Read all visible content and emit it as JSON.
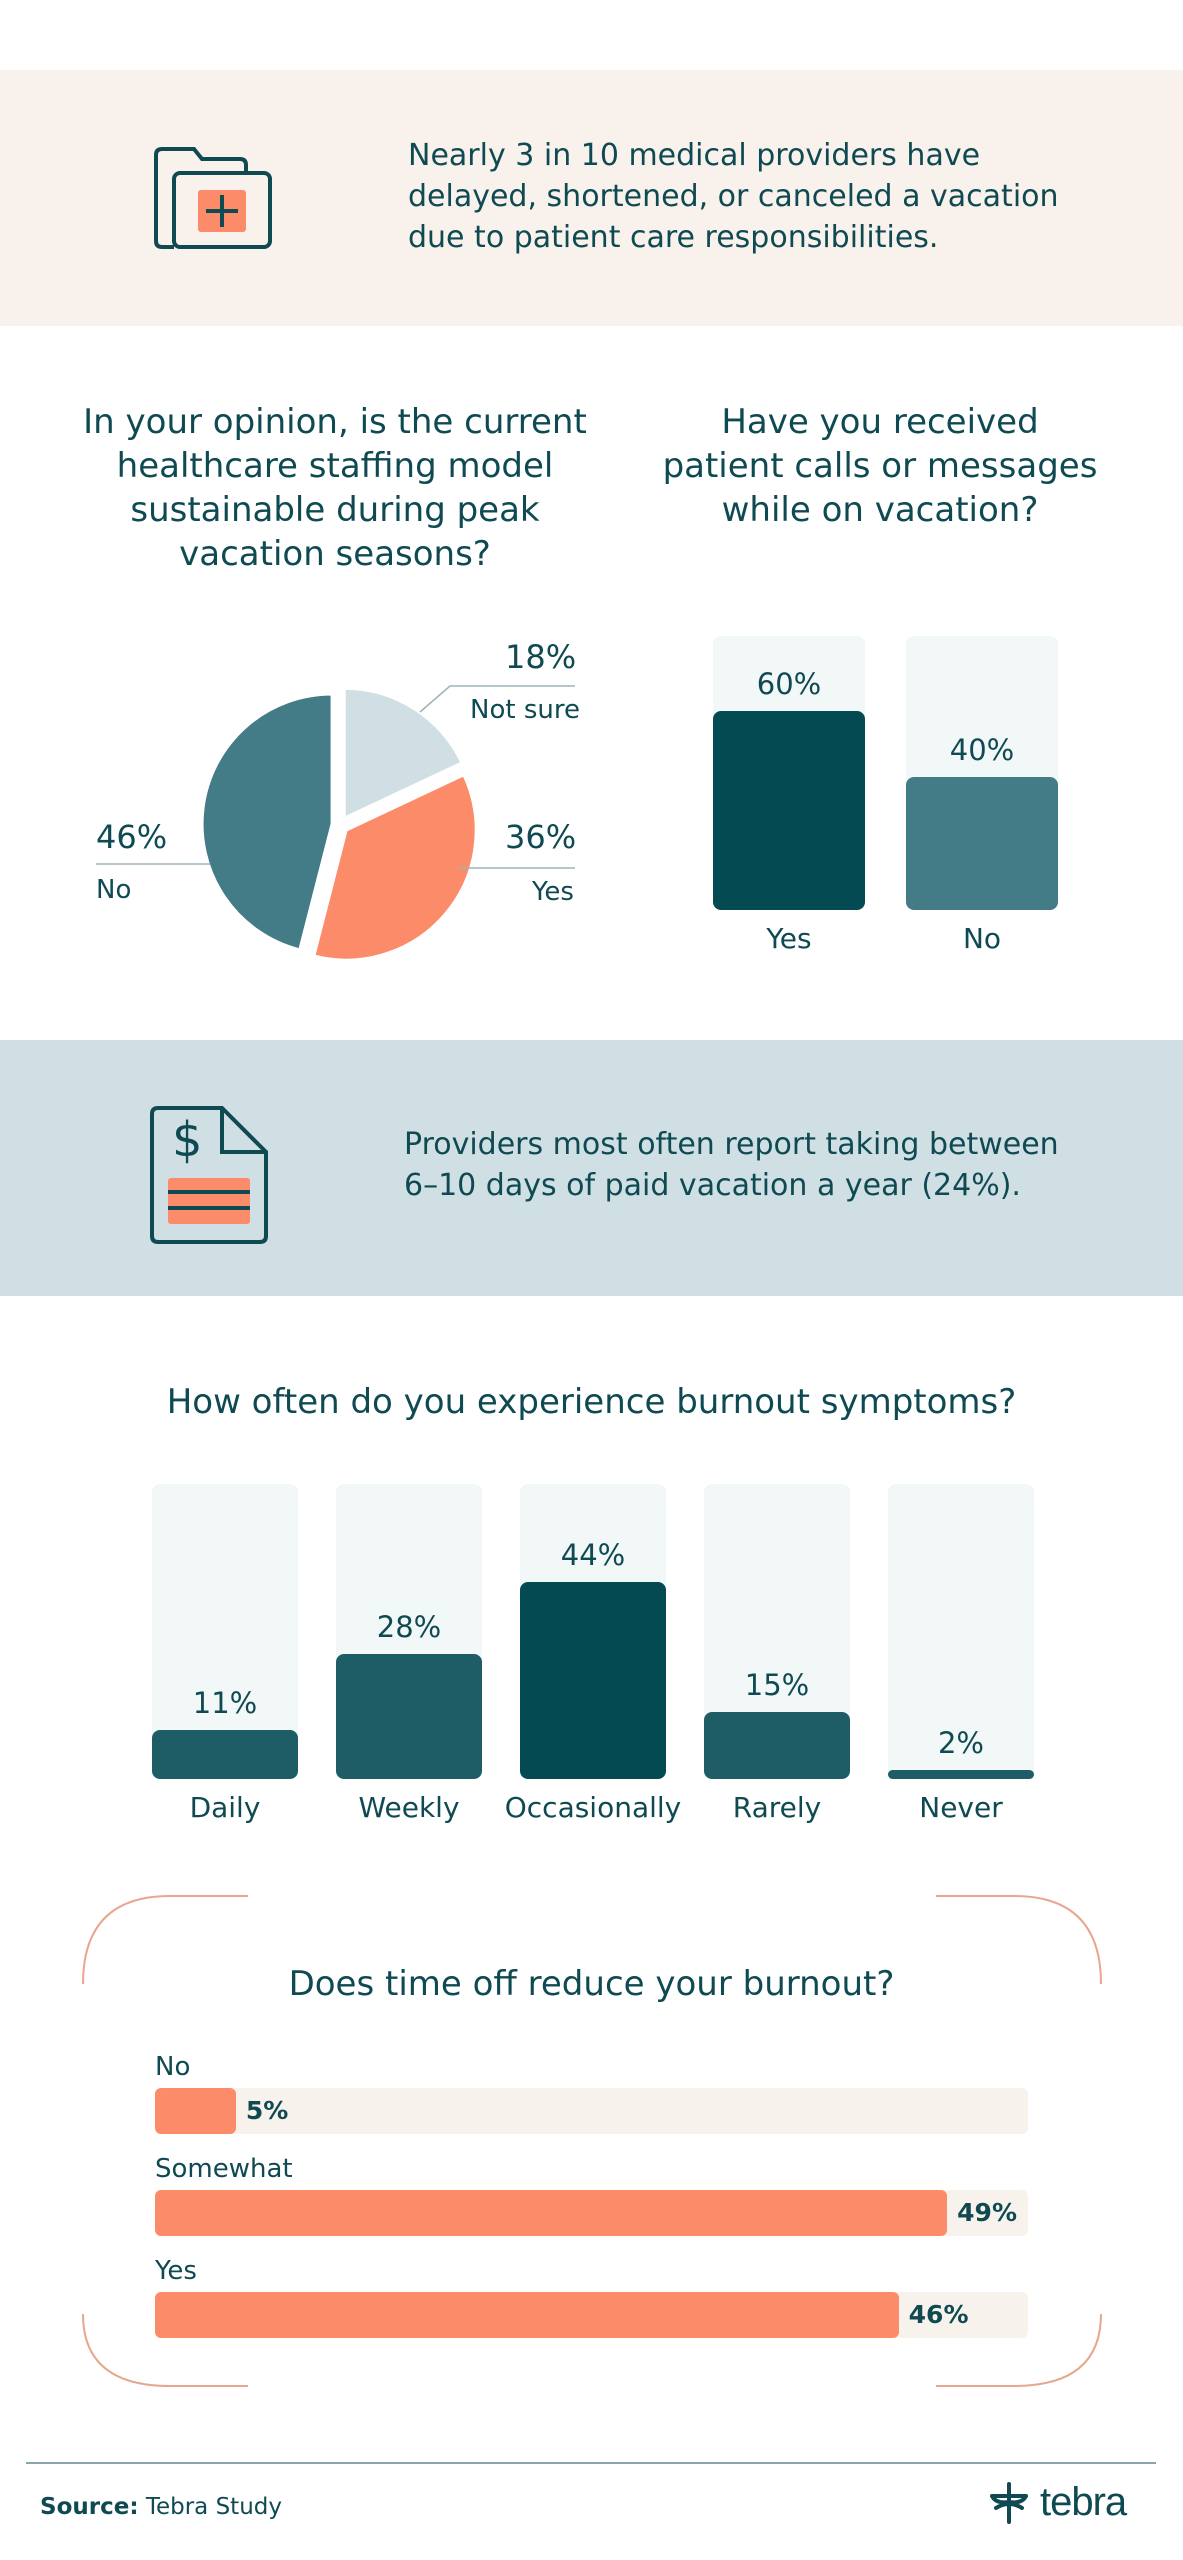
{
  "callout1": {
    "text_lines": [
      "Nearly 3 in 10 medical providers have",
      "delayed, shortened, or canceled a vacation",
      "due to patient care responsibilities."
    ],
    "icon": "medical-folder-icon"
  },
  "pie_question": {
    "lines": [
      "In your opinion, is the current",
      "healthcare staffing model",
      "sustainable during peak",
      "vacation seasons?"
    ]
  },
  "bar_question": {
    "lines": [
      "Have you received",
      "patient calls or messages",
      "while on vacation?"
    ]
  },
  "callout2": {
    "text_lines": [
      "Providers most often report taking between",
      "6–10 days of paid vacation a year (24%)."
    ],
    "icon": "dollar-document-icon"
  },
  "burnout_question": {
    "title": "How often do you experience burnout symptoms?"
  },
  "timeoff_question": {
    "title": "Does time off reduce your burnout?"
  },
  "footer": {
    "source_label": "Source:",
    "source_text": "Tebra Study",
    "logo_text": "tebra"
  },
  "colors": {
    "dark_teal": "#044a52",
    "mid_teal": "#437c87",
    "teal_bar": "#1e5d66",
    "light_blue": "#cfdfe4",
    "coral": "#fc8b6a",
    "cream": "#f8f1ec"
  },
  "chart_data": [
    {
      "type": "pie",
      "title": "In your opinion, is the current healthcare staffing model sustainable during peak vacation seasons?",
      "slices": [
        {
          "label": "Not sure",
          "value": 18,
          "display": "18%",
          "color": "#cfdfe4"
        },
        {
          "label": "Yes",
          "value": 36,
          "display": "36%",
          "color": "#fc8b6a"
        },
        {
          "label": "No",
          "value": 46,
          "display": "46%",
          "color": "#437c87"
        }
      ]
    },
    {
      "type": "bar",
      "title": "Have you received patient calls or messages while on vacation?",
      "categories": [
        "Yes",
        "No"
      ],
      "values": [
        60,
        40
      ],
      "display": [
        "60%",
        "40%"
      ],
      "colors": [
        "#044a52",
        "#437c87"
      ],
      "ylim": [
        0,
        100
      ]
    },
    {
      "type": "bar",
      "title": "How often do you experience burnout symptoms?",
      "categories": [
        "Daily",
        "Weekly",
        "Occasionally",
        "Rarely",
        "Never"
      ],
      "values": [
        11,
        28,
        44,
        15,
        2
      ],
      "display": [
        "11%",
        "28%",
        "44%",
        "15%",
        "2%"
      ],
      "colors": [
        "#1e5d66",
        "#1e5d66",
        "#044a52",
        "#1e5d66",
        "#1e5d66"
      ],
      "ylim": [
        0,
        66
      ]
    },
    {
      "type": "bar",
      "orientation": "horizontal",
      "title": "Does time off reduce your burnout?",
      "categories": [
        "No",
        "Somewhat",
        "Yes"
      ],
      "values": [
        5,
        49,
        46
      ],
      "display": [
        "5%",
        "49%",
        "46%"
      ],
      "xlim": [
        0,
        54
      ]
    }
  ]
}
